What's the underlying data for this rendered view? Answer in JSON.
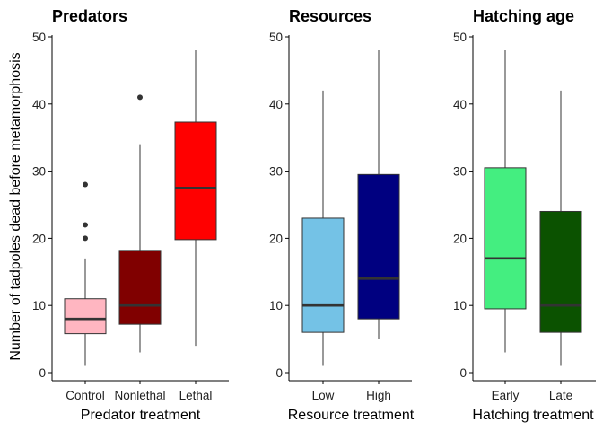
{
  "chart_data": {
    "type": "boxplot",
    "ylabel": "Number of tadpoles dead before metamorphosis",
    "ylim": [
      0,
      50
    ],
    "yticks": [
      0,
      10,
      20,
      30,
      40,
      50
    ],
    "panels": [
      {
        "title": "Predators",
        "xlabel": "Predator treatment",
        "categories": [
          {
            "label": "Control",
            "color": "#ffb6c1",
            "min": 1,
            "q1": 5.8,
            "median": 8,
            "q3": 11,
            "max": 17,
            "outliers": [
              20,
              22,
              28
            ]
          },
          {
            "label": "Nonlethal",
            "color": "#800000",
            "min": 3,
            "q1": 7.2,
            "median": 10,
            "q3": 18.2,
            "max": 34,
            "outliers": [
              41
            ]
          },
          {
            "label": "Lethal",
            "color": "#ff0000",
            "min": 4,
            "q1": 19.8,
            "median": 27.5,
            "q3": 37.3,
            "max": 48,
            "outliers": []
          }
        ]
      },
      {
        "title": "Resources",
        "xlabel": "Resource treatment",
        "categories": [
          {
            "label": "Low",
            "color": "#74c2e6",
            "min": 1,
            "q1": 6,
            "median": 10,
            "q3": 23,
            "max": 42,
            "outliers": []
          },
          {
            "label": "High",
            "color": "#000080",
            "min": 5,
            "q1": 8,
            "median": 14,
            "q3": 29.5,
            "max": 48,
            "outliers": []
          }
        ]
      },
      {
        "title": "Hatching age",
        "xlabel": "Hatching treatment",
        "categories": [
          {
            "label": "Early",
            "color": "#44ee80",
            "min": 3,
            "q1": 9.5,
            "median": 17,
            "q3": 30.5,
            "max": 48,
            "outliers": []
          },
          {
            "label": "Late",
            "color": "#0b5200",
            "min": 1,
            "q1": 6,
            "median": 10,
            "q3": 24,
            "max": 42,
            "outliers": []
          }
        ]
      }
    ]
  }
}
